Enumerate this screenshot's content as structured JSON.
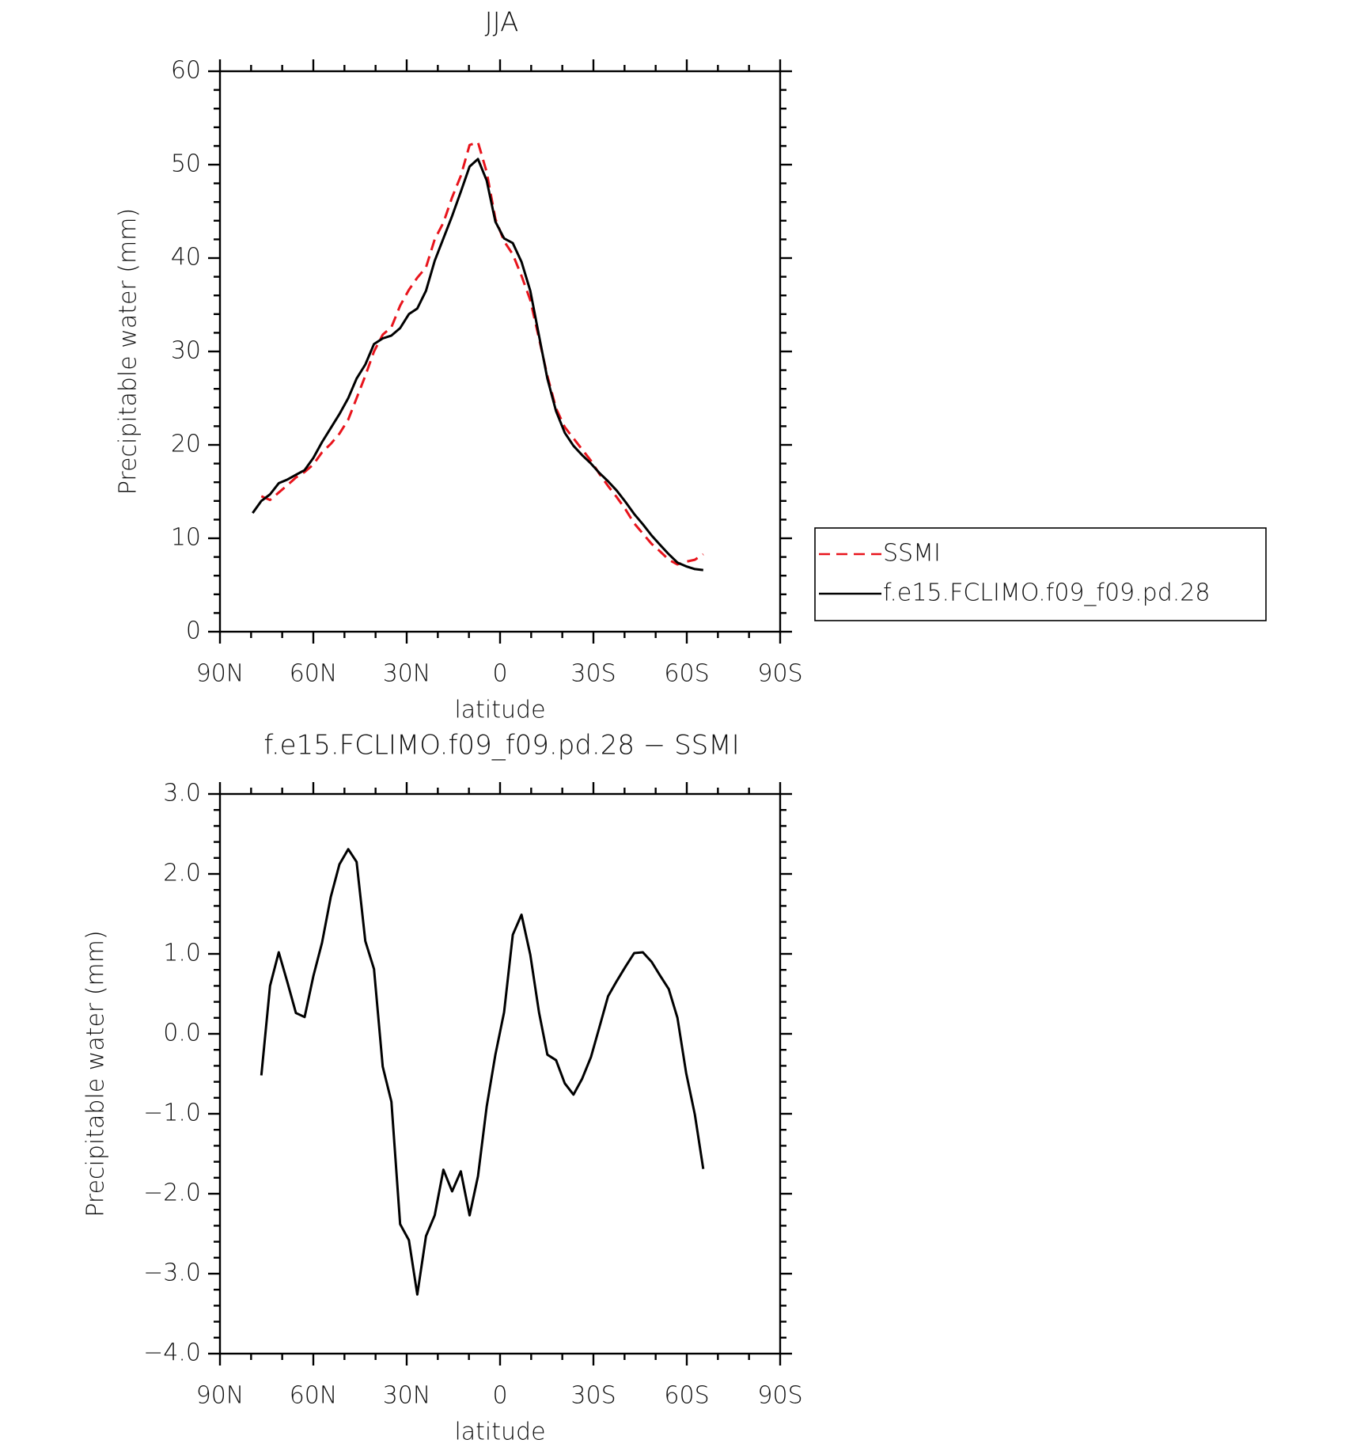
{
  "chart_data": [
    {
      "type": "line",
      "title": "JJA",
      "xlabel": "latitude",
      "ylabel": "Precipitable water (mm)",
      "x": [
        79.5,
        76.7,
        73.9,
        71.1,
        68.3,
        65.6,
        62.8,
        60.0,
        57.2,
        54.4,
        51.6,
        48.8,
        46.1,
        43.3,
        40.5,
        37.7,
        34.9,
        32.1,
        29.3,
        26.6,
        23.8,
        21.0,
        18.2,
        15.4,
        12.6,
        9.8,
        7.1,
        4.3,
        1.5,
        -1.3,
        -4.1,
        -6.9,
        -9.7,
        -12.5,
        -15.2,
        -18.0,
        -20.8,
        -23.6,
        -26.4,
        -29.2,
        -31.9,
        -34.7,
        -37.5,
        -40.3,
        -43.1,
        -45.9,
        -48.7,
        -51.4,
        -54.2,
        -57.0,
        -59.8,
        -62.6,
        -65.3
      ],
      "series": [
        {
          "name": "SSMI",
          "color": "#e8141c",
          "style": "dashed",
          "values": [
            null,
            14.5,
            14.1,
            14.9,
            15.7,
            16.5,
            17.1,
            17.9,
            19.2,
            20.1,
            21.2,
            22.7,
            25.0,
            27.4,
            30.0,
            31.8,
            32.6,
            34.9,
            36.6,
            37.9,
            39.0,
            42.0,
            43.8,
            46.5,
            48.8,
            52.1,
            52.4,
            49.2,
            44.2,
            41.8,
            40.4,
            38.1,
            35.5,
            31.4,
            27.4,
            23.9,
            21.9,
            20.7,
            19.5,
            18.3,
            16.9,
            15.6,
            14.4,
            13.1,
            11.6,
            10.5,
            9.4,
            8.6,
            7.7,
            7.2,
            7.5,
            7.7,
            8.3
          ]
        },
        {
          "name": "f.e15.FCLIMO.f09_f09.pd.28",
          "color": "#000000",
          "style": "solid",
          "values": [
            12.7,
            14.0,
            14.7,
            15.9,
            16.3,
            16.8,
            17.3,
            18.6,
            20.3,
            21.8,
            23.3,
            25.0,
            27.1,
            28.6,
            30.8,
            31.4,
            31.7,
            32.5,
            34.0,
            34.6,
            36.5,
            39.7,
            42.1,
            44.5,
            47.1,
            49.8,
            50.6,
            48.3,
            43.9,
            42.1,
            41.6,
            39.6,
            36.5,
            31.7,
            27.1,
            23.6,
            21.3,
            19.9,
            18.9,
            18.0,
            17.0,
            16.1,
            15.1,
            13.9,
            12.6,
            11.5,
            10.3,
            9.3,
            8.3,
            7.4,
            7.0,
            6.7,
            6.6
          ]
        }
      ],
      "xlim": [
        90,
        -90
      ],
      "xticks": [
        {
          "value": 90,
          "label": "90N"
        },
        {
          "value": 60,
          "label": "60N"
        },
        {
          "value": 30,
          "label": "30N"
        },
        0,
        {
          "value": -30,
          "label": "30S"
        },
        {
          "value": -60,
          "label": "60S"
        },
        {
          "value": -90,
          "label": "90S"
        }
      ],
      "ylim": [
        0,
        60
      ],
      "yticks": [
        0,
        10,
        20,
        30,
        40,
        50,
        60
      ],
      "grid": false,
      "legend": "right"
    },
    {
      "type": "line",
      "title": "f.e15.FCLIMO.f09_f09.pd.28 − SSMI",
      "xlabel": "latitude",
      "ylabel": "Precipitable water (mm)",
      "x": [
        76.7,
        73.9,
        71.1,
        68.3,
        65.6,
        62.8,
        60.0,
        57.2,
        54.4,
        51.6,
        48.8,
        46.1,
        43.3,
        40.5,
        37.7,
        34.9,
        32.1,
        29.3,
        26.6,
        23.8,
        21.0,
        18.2,
        15.4,
        12.6,
        9.8,
        7.1,
        4.3,
        1.5,
        -1.3,
        -4.1,
        -6.9,
        -9.7,
        -12.5,
        -15.2,
        -18.0,
        -20.8,
        -23.6,
        -26.4,
        -29.2,
        -31.9,
        -34.7,
        -37.5,
        -40.3,
        -43.1,
        -45.9,
        -48.7,
        -51.4,
        -54.2,
        -57.0,
        -59.8,
        -62.6,
        -65.3
      ],
      "values": [
        -0.52,
        0.6,
        1.02,
        0.64,
        0.26,
        0.21,
        0.72,
        1.14,
        1.71,
        2.12,
        2.31,
        2.15,
        1.16,
        0.81,
        -0.41,
        -0.85,
        -2.38,
        -2.58,
        -3.26,
        -2.53,
        -2.27,
        -1.7,
        -1.97,
        -1.72,
        -2.27,
        -1.78,
        -0.91,
        -0.26,
        0.27,
        1.24,
        1.49,
        0.99,
        0.27,
        -0.26,
        -0.33,
        -0.62,
        -0.76,
        -0.56,
        -0.29,
        0.08,
        0.47,
        0.66,
        0.84,
        1.01,
        1.02,
        0.9,
        0.73,
        0.56,
        0.2,
        -0.49,
        -1.01,
        -1.69
      ],
      "color": "#000000",
      "xlim": [
        90,
        -90
      ],
      "xticks": [
        {
          "value": 90,
          "label": "90N"
        },
        {
          "value": 60,
          "label": "60N"
        },
        {
          "value": 30,
          "label": "30N"
        },
        0,
        {
          "value": -30,
          "label": "30S"
        },
        {
          "value": -60,
          "label": "60S"
        },
        {
          "value": -90,
          "label": "90S"
        }
      ],
      "ylim": [
        -4,
        3
      ],
      "yticks": [
        {
          "value": -4,
          "label": "−4.0"
        },
        {
          "value": -3,
          "label": "−3.0"
        },
        {
          "value": -2,
          "label": "−2.0"
        },
        {
          "value": -1,
          "label": "−1.0"
        },
        {
          "value": 0,
          "label": "0.0"
        },
        {
          "value": 1,
          "label": "1.0"
        },
        {
          "value": 2,
          "label": "2.0"
        },
        {
          "value": 3,
          "label": "3.0"
        }
      ],
      "grid": false
    }
  ]
}
